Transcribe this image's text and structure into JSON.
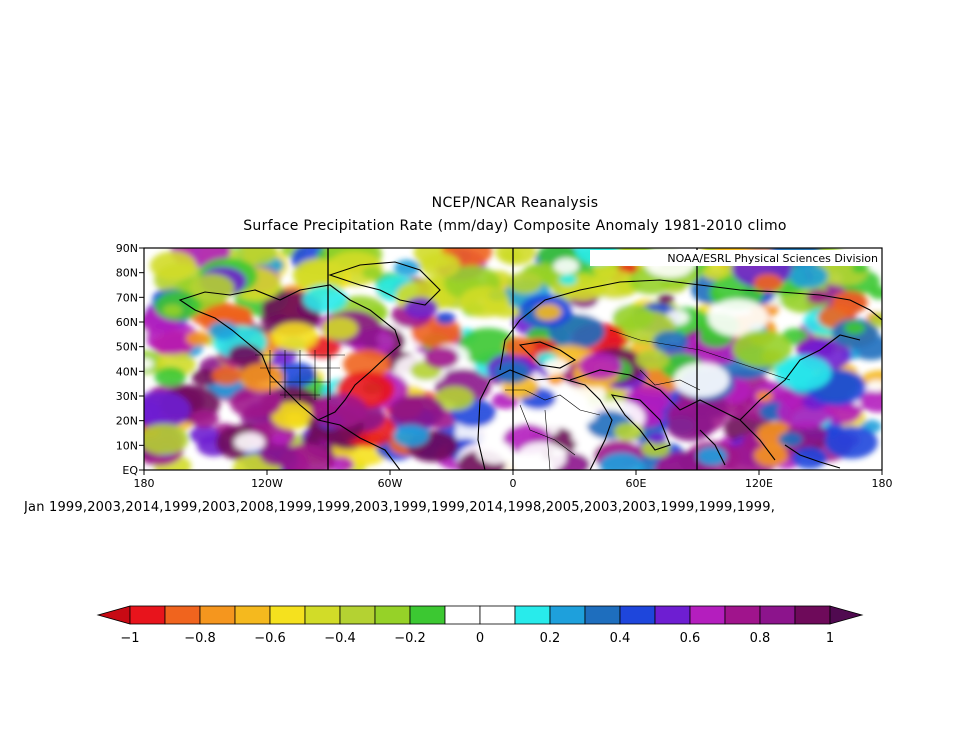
{
  "header": {
    "line1": "NCEP/NCAR Reanalysis",
    "line2": "Surface Precipitation Rate (mm/day) Composite Anomaly 1981-2010 climo"
  },
  "map": {
    "credit": "NOAA/ESRL Physical Sciences Division",
    "lat_labels": [
      "90N",
      "80N",
      "70N",
      "60N",
      "50N",
      "40N",
      "30N",
      "20N",
      "10N",
      "EQ"
    ],
    "lon_labels": [
      "180",
      "120W",
      "60W",
      "0",
      "60E",
      "120E",
      "180"
    ],
    "domain_lat": [
      0,
      90
    ],
    "domain_lon": [
      -180,
      180
    ]
  },
  "composite": {
    "label": "Jan 1999,2003,2014,1999,2003,2008,1999,1999,2003,1999,1999,2014,1998,2005,2003,2003,1999,1999,1999,"
  },
  "colorbar": {
    "labels": [
      "-1",
      "-0.8",
      "-0.6",
      "-0.4",
      "-0.2",
      "0",
      "0.2",
      "0.4",
      "0.6",
      "0.8",
      "1"
    ],
    "min": -1,
    "max": 1,
    "colors": [
      "#e8141c",
      "#f0641e",
      "#f5961e",
      "#f5b91e",
      "#f5e11e",
      "#d2dc28",
      "#b4d232",
      "#96d228",
      "#3cc832",
      "#ffffff",
      "#ffffff",
      "#28ebeb",
      "#1ea0dc",
      "#1e6ebe",
      "#1e46dc",
      "#6e1ed2",
      "#b41ebe",
      "#a0148c",
      "#8c148c",
      "#6e0a5a"
    ],
    "left_arrow_color": "#c80a14",
    "right_arrow_color": "#500a50"
  }
}
